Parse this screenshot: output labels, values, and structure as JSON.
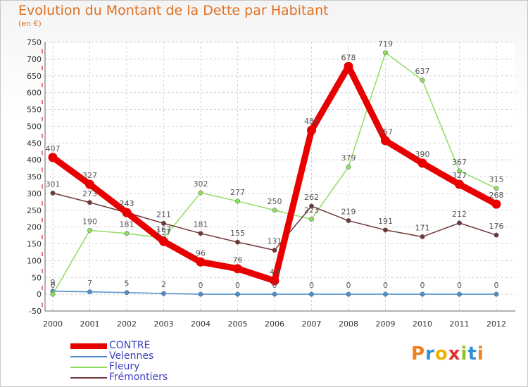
{
  "title": "Evolution du Montant de la Dette par Habitant",
  "unit_label": "(en €)",
  "logo": {
    "letters": [
      "P",
      "r",
      "o",
      "x",
      "i",
      "t",
      "i"
    ],
    "colors": [
      "#f08020",
      "#3090d0",
      "#f0b000",
      "#e03030",
      "#90c020",
      "#3090d0",
      "#f08020"
    ]
  },
  "chart_data": {
    "type": "line",
    "title": "Evolution du Montant de la Dette par Habitant",
    "ylabel": "(en €)",
    "xlabel": "",
    "x": [
      "2000",
      "2001",
      "2002",
      "2003",
      "2004",
      "2005",
      "2006",
      "2007",
      "2008",
      "2009",
      "2010",
      "2011",
      "2012"
    ],
    "ylim": [
      -50,
      750
    ],
    "yticks": [
      -50,
      0,
      50,
      100,
      150,
      200,
      250,
      300,
      350,
      400,
      450,
      500,
      550,
      600,
      650,
      700,
      750
    ],
    "grid": true,
    "legend": "bottom-left",
    "series": [
      {
        "name": "CONTRE",
        "color": "#e80000",
        "values": [
          407,
          327,
          243,
          157,
          96,
          76,
          40,
          488,
          678,
          457,
          390,
          327,
          268
        ]
      },
      {
        "name": "Velennes",
        "color": "#5090c8",
        "values": [
          9,
          7,
          5,
          2,
          0,
          0,
          0,
          0,
          0,
          0,
          0,
          0,
          0
        ]
      },
      {
        "name": "Fleury",
        "color": "#90dd60",
        "values": [
          0,
          190,
          181,
          167,
          302,
          277,
          250,
          223,
          379,
          719,
          637,
          367,
          315
        ]
      },
      {
        "name": "Frémontiers",
        "color": "#703838",
        "values": [
          301,
          273,
          243,
          211,
          181,
          155,
          131,
          262,
          219,
          191,
          171,
          212,
          176
        ]
      }
    ]
  }
}
